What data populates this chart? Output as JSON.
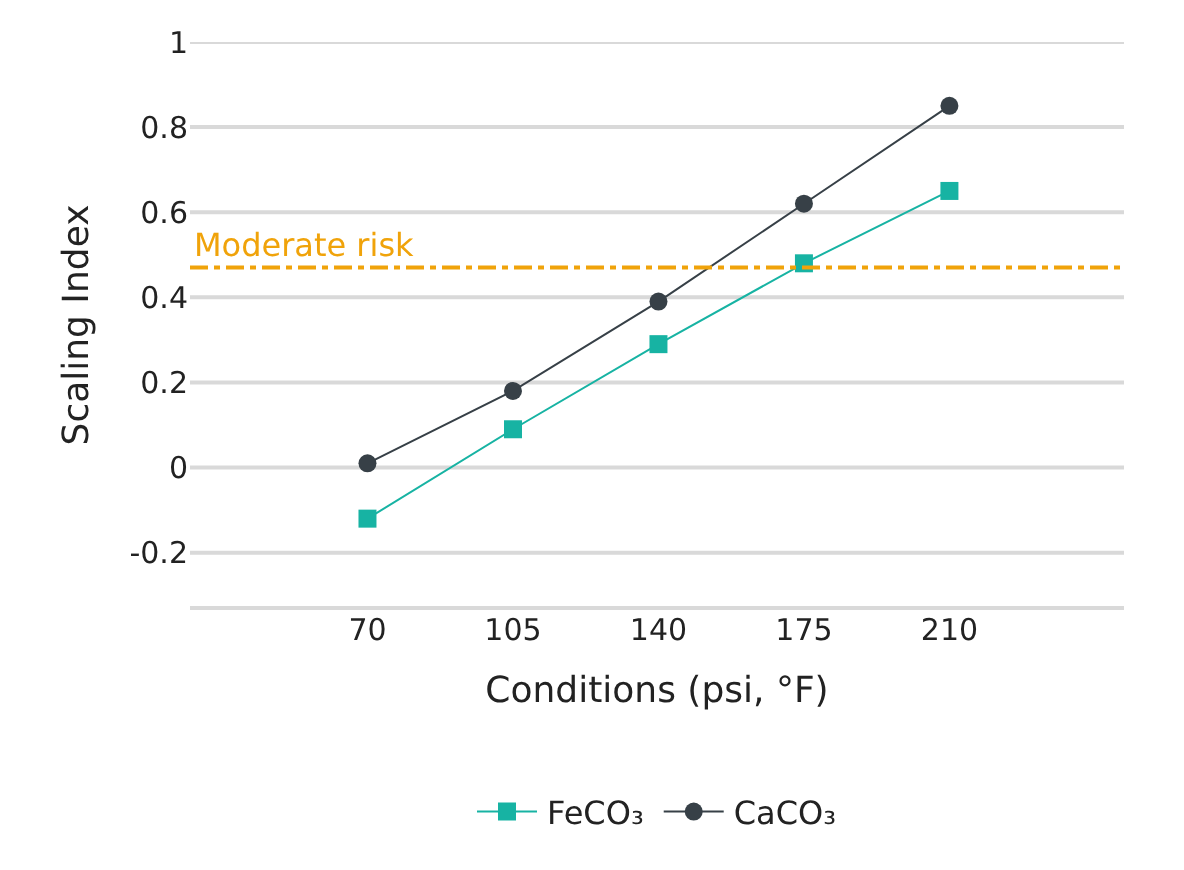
{
  "chart_data": {
    "type": "line",
    "xlabel": "Conditions (psi, °F)",
    "ylabel": "Scaling Index",
    "categories": [
      "70",
      "105",
      "140",
      "175",
      "210"
    ],
    "series": [
      {
        "name": "FeCO₃",
        "color": "#17b3a3",
        "marker": "square",
        "values": [
          -0.12,
          0.09,
          0.29,
          0.48,
          0.65
        ]
      },
      {
        "name": "CaCO₃",
        "color": "#374047",
        "marker": "circle",
        "values": [
          0.01,
          0.18,
          0.39,
          0.62,
          0.85
        ]
      }
    ],
    "ylim": [
      -0.33,
      1
    ],
    "yticks": [
      -0.2,
      0,
      0.2,
      0.4,
      0.6,
      0.8,
      1
    ],
    "ref_lines": [
      {
        "axis": "y",
        "value": 0.47,
        "label": "Moderate risk",
        "color": "#f0a30a",
        "line_style": "dashdot"
      }
    ],
    "grid": "y",
    "legend": "bottom"
  }
}
